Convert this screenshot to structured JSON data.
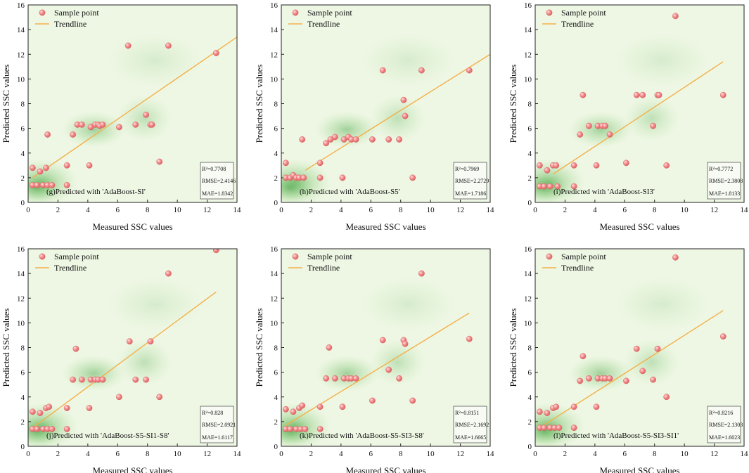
{
  "colors": {
    "point_fill": "#f08a8a",
    "point_stroke": "#d06060",
    "trend": "#f4b04a",
    "bg": "#eef7e4",
    "cluster": "#3d9f3d"
  },
  "shared": {
    "xlabel": "Measured SSC values",
    "ylabel": "Predicted SSC values",
    "legend_point": "Sample point",
    "legend_trend": "Trendline",
    "xticks": [
      "0",
      "2",
      "4",
      "6",
      "8",
      "10",
      "12",
      "14"
    ],
    "yticks": [
      "0",
      "2",
      "4",
      "6",
      "8",
      "10",
      "12",
      "14",
      "16"
    ],
    "xlim": [
      0,
      14
    ],
    "ylim": [
      0,
      16
    ]
  },
  "chart_data": [
    {
      "type": "scatter",
      "title": "(g)Predicted with 'AdaBoost-SI'",
      "xlabel": "Measured SSC values",
      "ylabel": "Predicted SSC values",
      "xlim": [
        0,
        14
      ],
      "ylim": [
        0,
        16
      ],
      "stats": {
        "r2": "R²=0.7708",
        "rmse": "RMSE=2.4146",
        "mae": "MAE=1.8342"
      },
      "trend": {
        "x": [
          0.3,
          14.0
        ],
        "y": [
          2.0,
          13.4
        ]
      },
      "points": [
        [
          0.3,
          2.8
        ],
        [
          0.8,
          2.5
        ],
        [
          1.2,
          2.8
        ],
        [
          1.3,
          5.5
        ],
        [
          0.3,
          1.4
        ],
        [
          0.6,
          1.4
        ],
        [
          1.0,
          1.4
        ],
        [
          1.3,
          1.4
        ],
        [
          1.6,
          1.4
        ],
        [
          2.6,
          1.4
        ],
        [
          2.6,
          3.0
        ],
        [
          3.0,
          5.5
        ],
        [
          3.3,
          6.3
        ],
        [
          3.6,
          6.3
        ],
        [
          4.1,
          3.0
        ],
        [
          4.2,
          6.1
        ],
        [
          4.5,
          6.3
        ],
        [
          4.7,
          6.3
        ],
        [
          4.8,
          6.2
        ],
        [
          5.0,
          6.3
        ],
        [
          6.1,
          6.1
        ],
        [
          6.7,
          12.7
        ],
        [
          7.2,
          6.3
        ],
        [
          7.9,
          7.1
        ],
        [
          8.2,
          6.3
        ],
        [
          8.3,
          6.3
        ],
        [
          8.8,
          3.3
        ],
        [
          9.4,
          12.7
        ],
        [
          12.6,
          12.1
        ]
      ]
    },
    {
      "type": "scatter",
      "title": "(h)Predicted with 'AdaBoost-S5'",
      "xlabel": "Measured SSC values",
      "ylabel": "Predicted SSC values",
      "xlim": [
        0,
        14
      ],
      "ylim": [
        0,
        16
      ],
      "stats": {
        "r2": "R²=0.7969",
        "rmse": "RMSE=2.2729",
        "mae": "MAE=1.7186"
      },
      "trend": {
        "x": [
          1.6,
          14.0
        ],
        "y": [
          2.6,
          12.0
        ]
      },
      "points": [
        [
          0.3,
          3.2
        ],
        [
          0.3,
          2.0
        ],
        [
          0.6,
          2.0
        ],
        [
          0.8,
          2.2
        ],
        [
          1.0,
          2.0
        ],
        [
          1.2,
          2.0
        ],
        [
          1.5,
          2.0
        ],
        [
          1.4,
          5.1
        ],
        [
          2.6,
          3.2
        ],
        [
          2.6,
          2.0
        ],
        [
          3.0,
          4.8
        ],
        [
          3.3,
          5.1
        ],
        [
          3.6,
          5.3
        ],
        [
          4.1,
          2.0
        ],
        [
          4.2,
          5.1
        ],
        [
          4.5,
          5.3
        ],
        [
          4.7,
          5.1
        ],
        [
          5.0,
          5.1
        ],
        [
          6.1,
          5.1
        ],
        [
          6.8,
          10.7
        ],
        [
          7.2,
          5.1
        ],
        [
          7.9,
          5.1
        ],
        [
          8.2,
          8.3
        ],
        [
          8.3,
          7.0
        ],
        [
          8.8,
          2.0
        ],
        [
          9.4,
          10.7
        ],
        [
          12.6,
          10.7
        ]
      ]
    },
    {
      "type": "scatter",
      "title": "(i)Predicted with 'AdaBoost-SI3'",
      "xlabel": "Measured SSC values",
      "ylabel": "Predicted SSC values",
      "xlim": [
        0,
        14
      ],
      "ylim": [
        0,
        16
      ],
      "stats": {
        "r2": "R²=0.7772",
        "rmse": "RMSE=2.3808",
        "mae": "MAE=1.8133"
      },
      "trend": {
        "x": [
          1.2,
          12.6
        ],
        "y": [
          2.3,
          11.4
        ]
      },
      "points": [
        [
          0.3,
          3.0
        ],
        [
          0.3,
          1.3
        ],
        [
          0.6,
          1.3
        ],
        [
          0.8,
          2.6
        ],
        [
          1.0,
          1.3
        ],
        [
          1.2,
          3.0
        ],
        [
          1.4,
          3.0
        ],
        [
          1.5,
          1.3
        ],
        [
          2.6,
          3.0
        ],
        [
          2.6,
          1.3
        ],
        [
          3.0,
          5.5
        ],
        [
          3.2,
          8.7
        ],
        [
          3.6,
          6.2
        ],
        [
          4.1,
          3.0
        ],
        [
          4.2,
          6.2
        ],
        [
          4.5,
          6.2
        ],
        [
          4.7,
          6.2
        ],
        [
          5.0,
          5.5
        ],
        [
          6.1,
          3.2
        ],
        [
          6.8,
          8.7
        ],
        [
          7.2,
          8.7
        ],
        [
          7.9,
          6.2
        ],
        [
          8.2,
          8.7
        ],
        [
          8.3,
          8.7
        ],
        [
          8.8,
          3.0
        ],
        [
          9.4,
          15.1
        ],
        [
          12.6,
          8.7
        ]
      ]
    },
    {
      "type": "scatter",
      "title": "(j)Predicted with 'AdaBoost-S5-SI1-S8'",
      "xlabel": "Measured SSC values",
      "ylabel": "Predicted SSC values",
      "xlim": [
        0,
        14
      ],
      "ylim": [
        0,
        16
      ],
      "stats": {
        "r2": "R²=0.828",
        "rmse": "RMSE=2.0921",
        "mae": "MAE=1.6117"
      },
      "trend": {
        "x": [
          0.3,
          12.6
        ],
        "y": [
          1.5,
          12.5
        ]
      },
      "points": [
        [
          0.3,
          2.8
        ],
        [
          0.8,
          2.7
        ],
        [
          1.2,
          3.1
        ],
        [
          1.4,
          3.2
        ],
        [
          0.3,
          1.4
        ],
        [
          0.6,
          1.4
        ],
        [
          1.0,
          1.4
        ],
        [
          1.3,
          1.4
        ],
        [
          1.6,
          1.4
        ],
        [
          2.6,
          1.4
        ],
        [
          2.6,
          3.1
        ],
        [
          3.0,
          5.4
        ],
        [
          3.2,
          7.9
        ],
        [
          3.6,
          5.4
        ],
        [
          4.1,
          3.1
        ],
        [
          4.2,
          5.4
        ],
        [
          4.5,
          5.4
        ],
        [
          4.7,
          5.4
        ],
        [
          5.0,
          5.4
        ],
        [
          6.1,
          4.0
        ],
        [
          6.8,
          8.5
        ],
        [
          7.2,
          5.4
        ],
        [
          7.9,
          5.4
        ],
        [
          8.2,
          8.5
        ],
        [
          8.8,
          4.0
        ],
        [
          9.4,
          14.0
        ],
        [
          12.6,
          15.9
        ]
      ]
    },
    {
      "type": "scatter",
      "title": "(k)Predicted with 'AdaBoost-S5-SI3-S8'",
      "xlabel": "Measured SSC values",
      "ylabel": "Predicted SSC values",
      "xlim": [
        0,
        14
      ],
      "ylim": [
        0,
        16
      ],
      "stats": {
        "r2": "R²=0.8151",
        "rmse": "RMSE=2.1692",
        "mae": "MAE=1.6665"
      },
      "trend": {
        "x": [
          0.3,
          12.6
        ],
        "y": [
          1.7,
          10.8
        ]
      },
      "points": [
        [
          0.3,
          3.0
        ],
        [
          0.8,
          2.8
        ],
        [
          1.2,
          3.1
        ],
        [
          1.4,
          3.3
        ],
        [
          0.3,
          1.4
        ],
        [
          0.6,
          1.4
        ],
        [
          1.0,
          1.4
        ],
        [
          1.3,
          1.4
        ],
        [
          1.6,
          1.4
        ],
        [
          2.6,
          1.4
        ],
        [
          2.6,
          3.2
        ],
        [
          3.0,
          5.5
        ],
        [
          3.2,
          8.0
        ],
        [
          3.6,
          5.5
        ],
        [
          4.1,
          3.2
        ],
        [
          4.2,
          5.5
        ],
        [
          4.5,
          5.5
        ],
        [
          4.7,
          5.5
        ],
        [
          5.0,
          5.5
        ],
        [
          6.1,
          3.7
        ],
        [
          6.8,
          8.6
        ],
        [
          7.2,
          6.2
        ],
        [
          7.9,
          5.5
        ],
        [
          8.2,
          8.6
        ],
        [
          8.3,
          8.3
        ],
        [
          8.8,
          3.7
        ],
        [
          9.4,
          14.0
        ],
        [
          12.6,
          8.7
        ]
      ]
    },
    {
      "type": "scatter",
      "title": "(l)Predicted with 'AdaBoost-S5-SI3-SI1'",
      "xlabel": "Measured SSC values",
      "ylabel": "Predicted SSC values",
      "xlim": [
        0,
        14
      ],
      "ylim": [
        0,
        16
      ],
      "stats": {
        "r2": "R²=0.8216",
        "rmse": "RMSE=2.1303",
        "mae": "MAE=1.6023"
      },
      "trend": {
        "x": [
          0.3,
          12.6
        ],
        "y": [
          1.5,
          11.0
        ]
      },
      "points": [
        [
          0.3,
          2.8
        ],
        [
          0.8,
          2.7
        ],
        [
          1.2,
          3.1
        ],
        [
          1.4,
          3.2
        ],
        [
          0.3,
          1.5
        ],
        [
          0.6,
          1.5
        ],
        [
          1.0,
          1.5
        ],
        [
          1.3,
          1.5
        ],
        [
          1.6,
          1.5
        ],
        [
          2.6,
          1.5
        ],
        [
          2.6,
          3.2
        ],
        [
          3.0,
          5.3
        ],
        [
          3.2,
          7.3
        ],
        [
          3.6,
          5.5
        ],
        [
          4.1,
          3.2
        ],
        [
          4.2,
          5.5
        ],
        [
          4.5,
          5.5
        ],
        [
          4.7,
          5.5
        ],
        [
          5.0,
          5.5
        ],
        [
          6.1,
          5.3
        ],
        [
          6.8,
          7.9
        ],
        [
          7.2,
          6.1
        ],
        [
          7.9,
          5.4
        ],
        [
          8.2,
          7.9
        ],
        [
          8.8,
          4.0
        ],
        [
          9.4,
          15.3
        ],
        [
          12.6,
          8.9
        ]
      ]
    }
  ]
}
